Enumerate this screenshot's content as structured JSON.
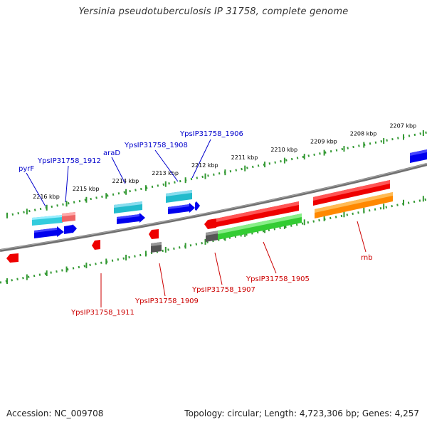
{
  "title": "Yersinia pseudotuberculosis IP 31758, complete genome",
  "colors": {
    "backbone": "#808080",
    "tick": "#339933",
    "scale_text": "#000000",
    "upper_gene_label": "#0000cc",
    "lower_gene_label": "#cc0000",
    "cyan": "#33ccdd",
    "blue": "#0000ee",
    "red": "#ee0000",
    "green": "#33cc33",
    "orange": "#ff8800",
    "salmon": "#ee6666",
    "dark_gray": "#555555"
  },
  "scale_labels": [
    "2216 kbp",
    "2215 kbp",
    "2214 kbp",
    "2213 kbp",
    "2212 kbp",
    "2211 kbp",
    "2210 kbp",
    "2209 kbp",
    "2208 kbp",
    "2207 kbp"
  ],
  "upper_gene_labels": [
    "pyrF",
    "YpsIP31758_1912",
    "araD",
    "YpsIP31758_1908",
    "YpsIP31758_1906"
  ],
  "lower_gene_labels": [
    "YpsIP31758_1911",
    "YpsIP31758_1909",
    "YpsIP31758_1907",
    "YpsIP31758_1905",
    "rnb"
  ],
  "footer": {
    "accession_label": "Accession:",
    "accession": "NC_009708",
    "topology_label": "Topology:",
    "topology": "circular;",
    "length_label": "Length:",
    "length": "4,723,306 bp;",
    "genes_label": "Genes:",
    "genes": "4,257"
  }
}
